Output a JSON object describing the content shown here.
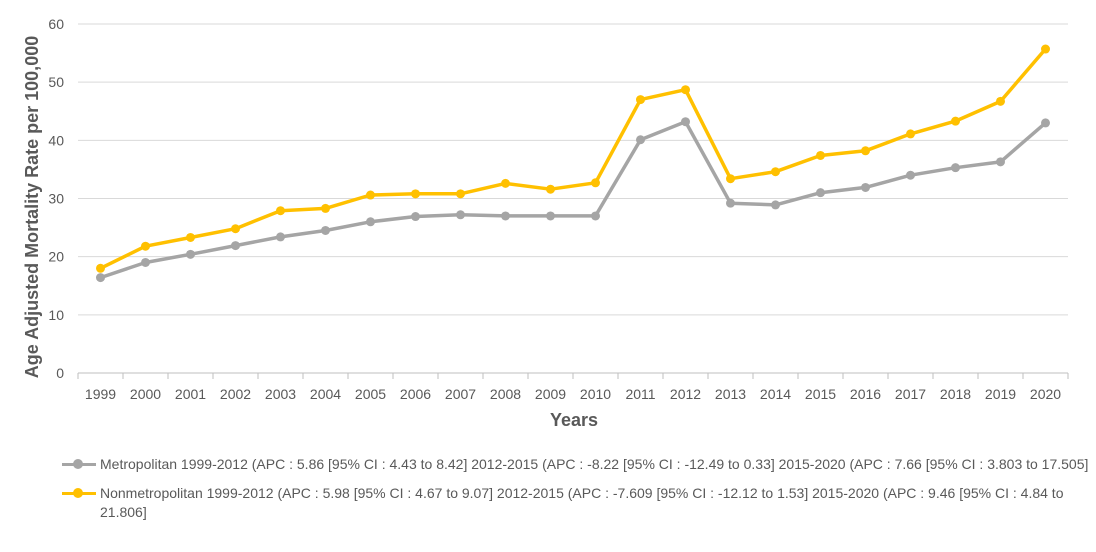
{
  "chart_data": {
    "type": "line",
    "title": "",
    "xlabel": "Years",
    "ylabel": "Age Adjusted Mortality Rate per 100,000",
    "ylim": [
      0,
      60
    ],
    "yticks": [
      0,
      10,
      20,
      30,
      40,
      50,
      60
    ],
    "grid": true,
    "legend_position": "bottom",
    "categories": [
      "1999",
      "2000",
      "2001",
      "2002",
      "2003",
      "2004",
      "2005",
      "2006",
      "2007",
      "2008",
      "2009",
      "2010",
      "2011",
      "2012",
      "2013",
      "2014",
      "2015",
      "2016",
      "2017",
      "2018",
      "2019",
      "2020"
    ],
    "series": [
      {
        "name": "Metropolitan 1999-2012 (APC : 5.86 [95% CI : 4.43 to 8.42] 2012-2015 (APC : -8.22 [95% CI : -12.49 to 0.33] 2015-2020 (APC : 7.66 [95% CI : 3.803 to 17.505]",
        "color": "#A5A5A5",
        "values": [
          16.4,
          19.0,
          20.4,
          21.9,
          23.4,
          24.5,
          26.0,
          26.9,
          27.2,
          27.0,
          27.0,
          27.0,
          40.1,
          43.2,
          29.2,
          28.9,
          31.0,
          31.9,
          34.0,
          35.3,
          36.3,
          43.0
        ]
      },
      {
        "name": "Nonmetropolitan 1999-2012 (APC : 5.98 [95% CI : 4.67 to 9.07] 2012-2015 (APC : -7.609 [95% CI : -12.12 to 1.53] 2015-2020 (APC : 9.46 [95% CI : 4.84 to 21.806]",
        "color": "#FFC000",
        "values": [
          18.0,
          21.8,
          23.3,
          24.8,
          27.9,
          28.3,
          30.6,
          30.8,
          30.8,
          32.6,
          31.6,
          32.7,
          47.0,
          48.7,
          33.4,
          34.6,
          37.4,
          38.2,
          41.1,
          43.3,
          46.7,
          55.7
        ]
      }
    ]
  }
}
